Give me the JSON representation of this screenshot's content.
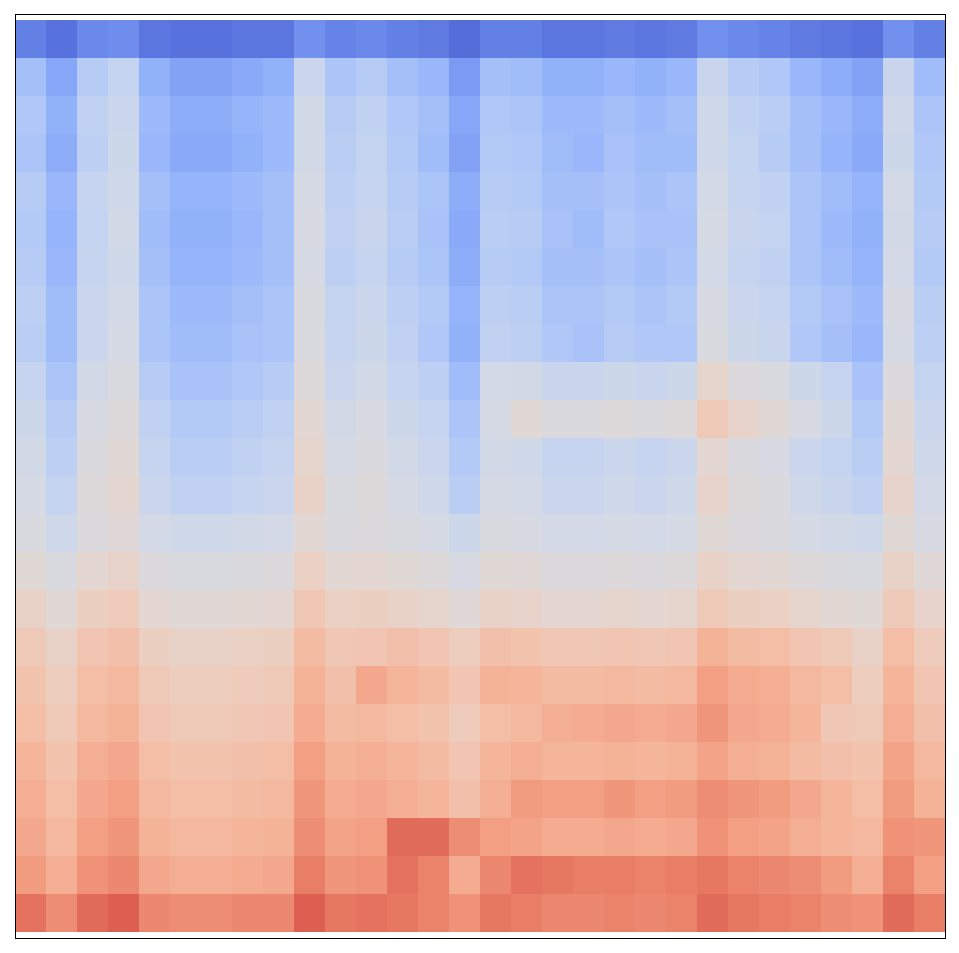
{
  "chart_data": {
    "type": "heatmap",
    "tick_labels": false,
    "color": "coolwarm",
    "zlim": [
      0,
      100
    ],
    "cells": [
      [
        11,
        8,
        13,
        14,
        9,
        8,
        8,
        9,
        9,
        15,
        12,
        13,
        11,
        10,
        7,
        11,
        11,
        9,
        9,
        10,
        9,
        10,
        15,
        13,
        12,
        10,
        9,
        8,
        15,
        11
      ],
      [
        28,
        20,
        33,
        37,
        23,
        19,
        19,
        21,
        23,
        40,
        30,
        33,
        28,
        25,
        17,
        28,
        27,
        23,
        23,
        25,
        23,
        25,
        39,
        33,
        31,
        25,
        22,
        19,
        39,
        27
      ],
      [
        31,
        23,
        36,
        40,
        26,
        22,
        22,
        24,
        26,
        43,
        33,
        36,
        31,
        28,
        20,
        31,
        30,
        26,
        26,
        28,
        26,
        28,
        42,
        36,
        34,
        28,
        25,
        22,
        42,
        30
      ],
      [
        30,
        22,
        35,
        41,
        25,
        21,
        21,
        23,
        26,
        43,
        34,
        37,
        32,
        27,
        19,
        32,
        31,
        27,
        25,
        29,
        27,
        27,
        42,
        37,
        33,
        28,
        24,
        21,
        41,
        31
      ],
      [
        33,
        25,
        38,
        42,
        28,
        24,
        24,
        26,
        28,
        45,
        35,
        38,
        33,
        30,
        22,
        33,
        32,
        28,
        28,
        30,
        28,
        30,
        44,
        38,
        36,
        30,
        27,
        24,
        44,
        32
      ],
      [
        32,
        24,
        37,
        43,
        27,
        23,
        23,
        25,
        28,
        46,
        36,
        39,
        34,
        29,
        21,
        34,
        33,
        29,
        27,
        31,
        29,
        29,
        45,
        39,
        37,
        30,
        26,
        23,
        43,
        33
      ],
      [
        33,
        25,
        38,
        42,
        28,
        24,
        24,
        26,
        28,
        45,
        35,
        38,
        33,
        30,
        22,
        33,
        32,
        28,
        28,
        30,
        28,
        30,
        44,
        38,
        36,
        30,
        27,
        24,
        44,
        32
      ],
      [
        35,
        27,
        40,
        44,
        30,
        26,
        26,
        28,
        30,
        47,
        37,
        40,
        35,
        32,
        24,
        35,
        34,
        30,
        30,
        32,
        30,
        32,
        46,
        40,
        38,
        32,
        29,
        26,
        46,
        34
      ],
      [
        34,
        27,
        40,
        45,
        30,
        27,
        27,
        29,
        30,
        47,
        38,
        41,
        36,
        31,
        23,
        36,
        35,
        31,
        29,
        33,
        31,
        31,
        47,
        41,
        39,
        31,
        28,
        25,
        45,
        35
      ],
      [
        38,
        30,
        43,
        47,
        33,
        29,
        29,
        31,
        33,
        50,
        40,
        43,
        38,
        35,
        27,
        44,
        43,
        39,
        39,
        41,
        39,
        41,
        55,
        49,
        47,
        41,
        38,
        29,
        49,
        37
      ],
      [
        41,
        33,
        46,
        50,
        36,
        32,
        32,
        34,
        36,
        53,
        43,
        46,
        41,
        38,
        30,
        45,
        52,
        48,
        48,
        50,
        48,
        50,
        62,
        56,
        52,
        46,
        41,
        32,
        52,
        40
      ],
      [
        43,
        35,
        48,
        52,
        38,
        34,
        34,
        36,
        38,
        55,
        45,
        48,
        43,
        40,
        32,
        43,
        42,
        38,
        38,
        40,
        38,
        40,
        54,
        48,
        46,
        40,
        37,
        34,
        54,
        42
      ],
      [
        45,
        37,
        50,
        54,
        40,
        36,
        36,
        38,
        40,
        57,
        47,
        50,
        45,
        42,
        34,
        45,
        44,
        40,
        40,
        42,
        40,
        42,
        56,
        50,
        48,
        42,
        39,
        36,
        56,
        44
      ],
      [
        47,
        42,
        49,
        51,
        44,
        42,
        42,
        43,
        44,
        53,
        48,
        49,
        47,
        45,
        41,
        47,
        46,
        44,
        44,
        45,
        44,
        45,
        52,
        49,
        48,
        45,
        43,
        42,
        52,
        46
      ],
      [
        52,
        47,
        54,
        56,
        49,
        47,
        47,
        48,
        49,
        58,
        53,
        54,
        52,
        50,
        46,
        52,
        51,
        49,
        49,
        50,
        49,
        50,
        57,
        54,
        53,
        50,
        48,
        47,
        57,
        51
      ],
      [
        57,
        52,
        59,
        61,
        54,
        52,
        52,
        53,
        54,
        63,
        58,
        59,
        57,
        55,
        51,
        57,
        56,
        54,
        54,
        55,
        54,
        55,
        62,
        59,
        58,
        55,
        53,
        52,
        62,
        56
      ],
      [
        62,
        57,
        64,
        66,
        59,
        57,
        57,
        58,
        59,
        68,
        63,
        64,
        66,
        64,
        60,
        66,
        65,
        63,
        63,
        64,
        63,
        64,
        71,
        68,
        67,
        64,
        62,
        57,
        67,
        61
      ],
      [
        65,
        60,
        67,
        69,
        62,
        60,
        60,
        61,
        62,
        71,
        66,
        74,
        70,
        68,
        64,
        71,
        70,
        68,
        68,
        69,
        68,
        69,
        76,
        73,
        72,
        69,
        67,
        60,
        70,
        64
      ],
      [
        67,
        62,
        69,
        71,
        64,
        62,
        62,
        63,
        64,
        73,
        68,
        69,
        67,
        65,
        61,
        67,
        69,
        72,
        73,
        74,
        73,
        74,
        78,
        74,
        73,
        70,
        63,
        62,
        72,
        66
      ],
      [
        70,
        65,
        72,
        74,
        67,
        65,
        65,
        66,
        67,
        76,
        71,
        72,
        70,
        68,
        64,
        70,
        72,
        70,
        70,
        71,
        70,
        71,
        75,
        72,
        71,
        68,
        66,
        65,
        75,
        69
      ],
      [
        72,
        67,
        74,
        76,
        69,
        67,
        67,
        68,
        69,
        78,
        73,
        74,
        72,
        70,
        66,
        72,
        77,
        76,
        76,
        78,
        76,
        77,
        80,
        78,
        77,
        74,
        70,
        67,
        77,
        71
      ],
      [
        74,
        69,
        76,
        78,
        71,
        69,
        69,
        70,
        71,
        80,
        75,
        76,
        86,
        86,
        80,
        76,
        75,
        73,
        73,
        74,
        73,
        74,
        79,
        76,
        75,
        72,
        70,
        69,
        79,
        78
      ],
      [
        77,
        72,
        79,
        81,
        74,
        72,
        72,
        73,
        74,
        83,
        78,
        79,
        85,
        82,
        73,
        81,
        85,
        84,
        83,
        83,
        82,
        83,
        84,
        82,
        81,
        80,
        77,
        72,
        82,
        76
      ],
      [
        85,
        80,
        86,
        88,
        81,
        80,
        80,
        81,
        81,
        88,
        84,
        85,
        84,
        82,
        79,
        84,
        83,
        81,
        81,
        82,
        81,
        82,
        86,
        84,
        83,
        82,
        80,
        79,
        86,
        83
      ]
    ]
  }
}
